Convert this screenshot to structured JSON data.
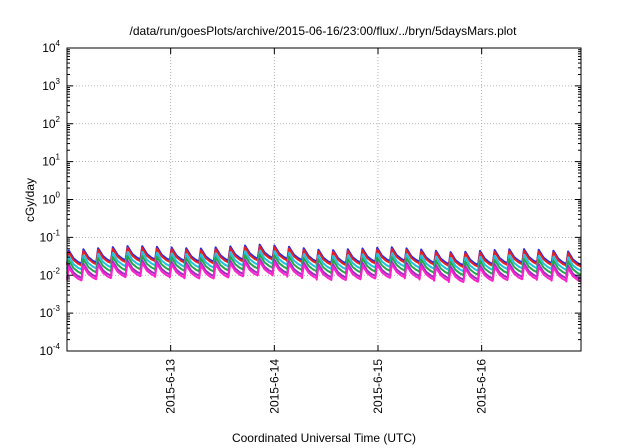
{
  "chart_data": {
    "type": "line",
    "title": "/data/run/goesPlots/archive/2015-06-16/23:00/flux/../bryn/5daysMars.plot",
    "xlabel": "Coordinated Universal Time (UTC)",
    "ylabel": "cGy/day",
    "yscale": "log",
    "ylim": [
      0.0001,
      10000
    ],
    "xlim": [
      "2015-06-12T00:00",
      "2015-06-16T23:00"
    ],
    "grid": true,
    "legend": "none",
    "x_ticks": [
      {
        "value": "2015-06-13",
        "label": "2015-6-13"
      },
      {
        "value": "2015-06-14",
        "label": "2015-6-14"
      },
      {
        "value": "2015-06-15",
        "label": "2015-6-15"
      },
      {
        "value": "2015-06-16",
        "label": "2015-6-16"
      }
    ],
    "y_ticks": [
      {
        "value": 10000,
        "base": "10",
        "exp": "4"
      },
      {
        "value": 1000,
        "base": "10",
        "exp": "3"
      },
      {
        "value": 100,
        "base": "10",
        "exp": "2"
      },
      {
        "value": 10,
        "base": "10",
        "exp": "1"
      },
      {
        "value": 1,
        "base": "10",
        "exp": "0"
      },
      {
        "value": 0.1,
        "base": "10",
        "exp": "-1"
      },
      {
        "value": 0.01,
        "base": "10",
        "exp": "-2"
      },
      {
        "value": 0.001,
        "base": "10",
        "exp": "-3"
      },
      {
        "value": 0.0001,
        "base": "10",
        "exp": "-4"
      }
    ],
    "pattern": {
      "cycle_count": 35,
      "peak_envelope": [
        0.045,
        0.06,
        0.05,
        0.065,
        0.045,
        0.055,
        0.04,
        0.05,
        0.04
      ],
      "trough_fraction": 0.45
    },
    "series": [
      {
        "color": "#2a2ae6",
        "scale": 1.0
      },
      {
        "color": "#e62020",
        "scale": 0.9
      },
      {
        "color": "#22c0e0",
        "scale": 0.7
      },
      {
        "color": "#22a84a",
        "scale": 0.55
      },
      {
        "color": "#9a2fc0",
        "scale": 0.42
      },
      {
        "color": "#ff22cc",
        "scale": 0.36
      }
    ]
  }
}
